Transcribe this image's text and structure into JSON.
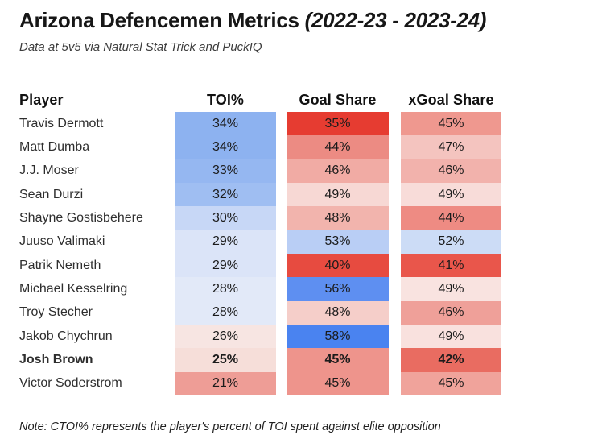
{
  "header": {
    "title_main": "Arizona Defencemen Metrics ",
    "title_season": "(2022-23 - 2023-24)",
    "subtitle": "Data at 5v5 via Natural Stat Trick and PuckIQ"
  },
  "table": {
    "columns": [
      "Player",
      "TOI%",
      "Goal Share",
      "xGoal Share"
    ],
    "rows": [
      {
        "player": "Travis Dermott",
        "bold": false,
        "toi": {
          "value": "34%",
          "color": "#8db2f0"
        },
        "goal_share": {
          "value": "35%",
          "color": "#e63c31"
        },
        "xgoal_share": {
          "value": "45%",
          "color": "#ef988f"
        }
      },
      {
        "player": "Matt Dumba",
        "bold": false,
        "toi": {
          "value": "34%",
          "color": "#8db2f0"
        },
        "goal_share": {
          "value": "44%",
          "color": "#ec8b83"
        },
        "xgoal_share": {
          "value": "47%",
          "color": "#f4c4bf"
        }
      },
      {
        "player": "J.J. Moser",
        "bold": false,
        "toi": {
          "value": "33%",
          "color": "#95b7f1"
        },
        "goal_share": {
          "value": "46%",
          "color": "#f1aba4"
        },
        "xgoal_share": {
          "value": "46%",
          "color": "#f2b2ac"
        }
      },
      {
        "player": "Sean Durzi",
        "bold": false,
        "toi": {
          "value": "32%",
          "color": "#9fbef2"
        },
        "goal_share": {
          "value": "49%",
          "color": "#f7d8d4"
        },
        "xgoal_share": {
          "value": "49%",
          "color": "#f8dcd9"
        }
      },
      {
        "player": "Shayne Gostisbehere",
        "bold": false,
        "toi": {
          "value": "30%",
          "color": "#c7d7f6"
        },
        "goal_share": {
          "value": "48%",
          "color": "#f2b4ad"
        },
        "xgoal_share": {
          "value": "44%",
          "color": "#ee8b83"
        }
      },
      {
        "player": "Juuso Valimaki",
        "bold": false,
        "toi": {
          "value": "29%",
          "color": "#dbe4f8"
        },
        "goal_share": {
          "value": "53%",
          "color": "#b9cef5"
        },
        "xgoal_share": {
          "value": "52%",
          "color": "#ccdcf6"
        }
      },
      {
        "player": "Patrik Nemeth",
        "bold": false,
        "toi": {
          "value": "29%",
          "color": "#dbe4f8"
        },
        "goal_share": {
          "value": "40%",
          "color": "#e74b40"
        },
        "xgoal_share": {
          "value": "41%",
          "color": "#e9564b"
        }
      },
      {
        "player": "Michael Kesselring",
        "bold": false,
        "toi": {
          "value": "28%",
          "color": "#e2e9f8"
        },
        "goal_share": {
          "value": "56%",
          "color": "#5e8ff1"
        },
        "xgoal_share": {
          "value": "49%",
          "color": "#f9e3e0"
        }
      },
      {
        "player": "Troy Stecher",
        "bold": false,
        "toi": {
          "value": "28%",
          "color": "#e2e9f8"
        },
        "goal_share": {
          "value": "48%",
          "color": "#f5cec9"
        },
        "xgoal_share": {
          "value": "46%",
          "color": "#efa099"
        }
      },
      {
        "player": "Jakob Chychrun",
        "bold": false,
        "toi": {
          "value": "26%",
          "color": "#f7e5e2"
        },
        "goal_share": {
          "value": "58%",
          "color": "#4a83f0"
        },
        "xgoal_share": {
          "value": "49%",
          "color": "#f9e1de"
        }
      },
      {
        "player": "Josh Brown",
        "bold": true,
        "toi": {
          "value": "25%",
          "color": "#f6ded9"
        },
        "goal_share": {
          "value": "45%",
          "color": "#ee948c"
        },
        "xgoal_share": {
          "value": "42%",
          "color": "#e96c61"
        }
      },
      {
        "player": "Victor Soderstrom",
        "bold": false,
        "toi": {
          "value": "21%",
          "color": "#ee9d96"
        },
        "goal_share": {
          "value": "45%",
          "color": "#ee948c"
        },
        "xgoal_share": {
          "value": "45%",
          "color": "#f0a39b"
        }
      }
    ]
  },
  "footnote": "Note: CTOI% represents the player's percent of TOI spent against elite opposition",
  "chart_data": {
    "type": "table",
    "title": "Arizona Defencemen Metrics (2022-23 - 2023-24)",
    "subtitle": "Data at 5v5 via Natural Stat Trick and PuckIQ",
    "columns": [
      "Player",
      "TOI%",
      "Goal Share",
      "xGoal Share"
    ],
    "rows": [
      [
        "Travis Dermott",
        34,
        35,
        45
      ],
      [
        "Matt Dumba",
        34,
        44,
        47
      ],
      [
        "J.J. Moser",
        33,
        46,
        46
      ],
      [
        "Sean Durzi",
        32,
        49,
        49
      ],
      [
        "Shayne Gostisbehere",
        30,
        48,
        44
      ],
      [
        "Juuso Valimaki",
        29,
        53,
        52
      ],
      [
        "Patrik Nemeth",
        29,
        40,
        41
      ],
      [
        "Michael Kesselring",
        28,
        56,
        49
      ],
      [
        "Troy Stecher",
        28,
        48,
        46
      ],
      [
        "Jakob Chychrun",
        26,
        58,
        49
      ],
      [
        "Josh Brown",
        25,
        45,
        42
      ],
      [
        "Victor Soderstrom",
        21,
        45,
        45
      ]
    ],
    "values_unit": "percent",
    "heatmap": {
      "style": "diverging, red = low / bad, blue = high / good, white near midpoint",
      "low_color": "#e63c31",
      "mid_color": "#ffffff",
      "high_color": "#4a83f0",
      "normalized": "per column"
    },
    "note": "Note: CTOI% represents the player's percent of TOI spent against elite opposition"
  }
}
